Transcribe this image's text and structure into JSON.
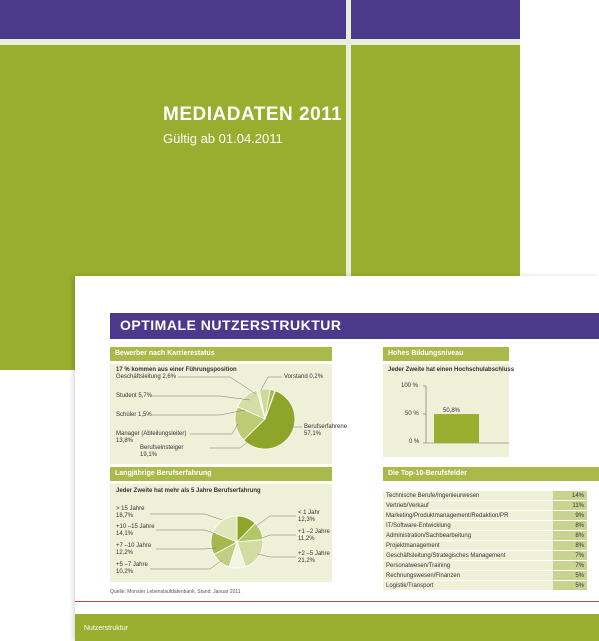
{
  "cover": {
    "title": "MEDIADATEN 2011",
    "subtitle": "Gültig ab 01.04.2011"
  },
  "front": {
    "title": "OPTIMALE NUTZERSTRUKTUR",
    "footer": "Nutzerstruktur",
    "source": "Quelle: Monster Lebenslaufdatenbank, Stand: Januar 2011"
  },
  "career": {
    "heading": "Bewerber nach Karrierestatus",
    "subheading": "17 % kommen aus einer Führungsposition",
    "labels": {
      "geschaeft": "Geschäftsleitung 2,6%",
      "vorstand": "Vorstand 0,2%",
      "student": "Student 5,7%",
      "schueler": "Schüler 1,5%",
      "manager1": "Manager (Abteilungsleiter)",
      "manager2": "13,8%",
      "einsteiger1": "Berufseinsteiger",
      "einsteiger2": "19,1%",
      "erfahren1": "Berufserfahrene",
      "erfahren2": "57,1%"
    }
  },
  "education": {
    "heading": "Hohes Bildungsniveau",
    "subheading": "Jeder Zweite hat einen Hochschulabschluss",
    "ticks": [
      "100 %",
      "50 %",
      "0 %"
    ],
    "bar_label": "50,8%"
  },
  "experience": {
    "heading": "Langjährige Berufserfahrung",
    "subheading": "Jeder Zweite hat mehr als 5 Jahre Berufserfahrung",
    "labels": {
      "l15a": "> 15 Jahre",
      "l15b": "18,7%",
      "l10a": "+10 –15 Jahre",
      "l10b": "14,1%",
      "l7a": "+7 –10 Jahre",
      "l7b": "12,2%",
      "l5a": "+5 –7 Jahre",
      "l5b": "10,2%",
      "r1a": "< 1 Jahr",
      "r1b": "12,3%",
      "r2a": "+1 –2 Jahre",
      "r2b": "11,2%",
      "r5a": "+2 –5 Jahre",
      "r5b": "21,2%"
    }
  },
  "jobs": {
    "heading": "Die Top-10-Berufsfelder",
    "rows": [
      {
        "name": "Technische Berufe/Ingenieurwesen",
        "value": "14%"
      },
      {
        "name": "Vertrieb/Verkauf",
        "value": "11%"
      },
      {
        "name": "Marketing/Produktmanagement/Redaktion/PR",
        "value": "9%"
      },
      {
        "name": "IT/Software-Entwicklung",
        "value": "8%"
      },
      {
        "name": "Administration/Sachbearbeitung",
        "value": "8%"
      },
      {
        "name": "Projektmanagement",
        "value": "8%"
      },
      {
        "name": "Geschäftsleitung/Strategisches Management",
        "value": "7%"
      },
      {
        "name": "Personalwesen/Training",
        "value": "7%"
      },
      {
        "name": "Rechnungswesen/Finanzen",
        "value": "5%"
      },
      {
        "name": "Logistik/Transport",
        "value": "5%"
      }
    ]
  },
  "chart_data": [
    {
      "type": "pie",
      "categories": [
        "Berufserfahrene",
        "Berufseinsteiger",
        "Manager (Abteilungsleiter)",
        "Schüler",
        "Student",
        "Geschäftsleitung",
        "Vorstand"
      ],
      "values": [
        57.1,
        19.1,
        13.8,
        1.5,
        5.7,
        2.6,
        0.2
      ]
    },
    {
      "type": "bar",
      "categories": [
        ""
      ],
      "values": [
        50.8
      ],
      "ylim": [
        0,
        100
      ]
    },
    {
      "type": "pie",
      "categories": [
        "< 1 Jahr",
        "+1 –2 Jahre",
        "+2 –5 Jahre",
        "+5 –7 Jahre",
        "+7 –10 Jahre",
        "+10 –15 Jahre",
        "> 15 Jahre"
      ],
      "values": [
        12.3,
        11.2,
        21.2,
        10.2,
        12.2,
        14.1,
        18.7
      ]
    }
  ],
  "colors": {
    "purple": "#4b3a8c",
    "green": "#99ad2e",
    "panel": "#eef0d8"
  }
}
